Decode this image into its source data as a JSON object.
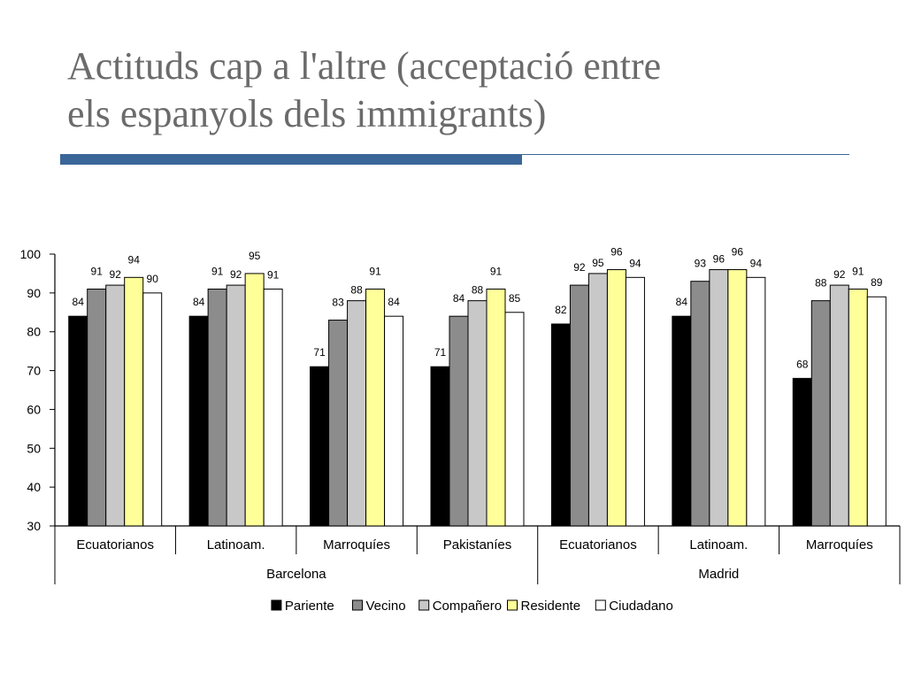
{
  "slide": {
    "title_line1": "Actituds cap a l'altre (acceptació entre",
    "title_line2": "els espanyols dels immigrants)",
    "accent_color": "#3b6699"
  },
  "chart_data": {
    "type": "bar",
    "title": "",
    "xlabel": "",
    "ylabel": "",
    "ylim": [
      30,
      100
    ],
    "yticks": [
      30,
      40,
      50,
      60,
      70,
      80,
      90,
      100
    ],
    "grid": false,
    "legend_position": "bottom",
    "groups": [
      {
        "name": "Barcelona",
        "categories": [
          "Ecuatorianos",
          "Latinoam.",
          "Marroquíes",
          "Pakistaníes"
        ]
      },
      {
        "name": "Madrid",
        "categories": [
          "Ecuatorianos",
          "Latinoam.",
          "Marroquíes"
        ]
      }
    ],
    "categories": [
      "Ecuatorianos",
      "Latinoam.",
      "Marroquíes",
      "Pakistaníes",
      "Ecuatorianos",
      "Latinoam.",
      "Marroquíes"
    ],
    "series": [
      {
        "name": "Pariente",
        "color": "#000000",
        "values": [
          84,
          84,
          71,
          71,
          82,
          84,
          68
        ]
      },
      {
        "name": "Vecino",
        "color": "#8c8c8c",
        "values": [
          91,
          91,
          83,
          84,
          92,
          93,
          88
        ]
      },
      {
        "name": "Compañero",
        "color": "#c8c8c8",
        "values": [
          92,
          92,
          88,
          88,
          95,
          96,
          92
        ]
      },
      {
        "name": "Residente",
        "color": "#ffff99",
        "values": [
          94,
          95,
          91,
          91,
          96,
          96,
          91
        ]
      },
      {
        "name": "Ciudadano",
        "color": "#ffffff",
        "values": [
          90,
          91,
          84,
          85,
          94,
          94,
          89
        ]
      }
    ]
  }
}
